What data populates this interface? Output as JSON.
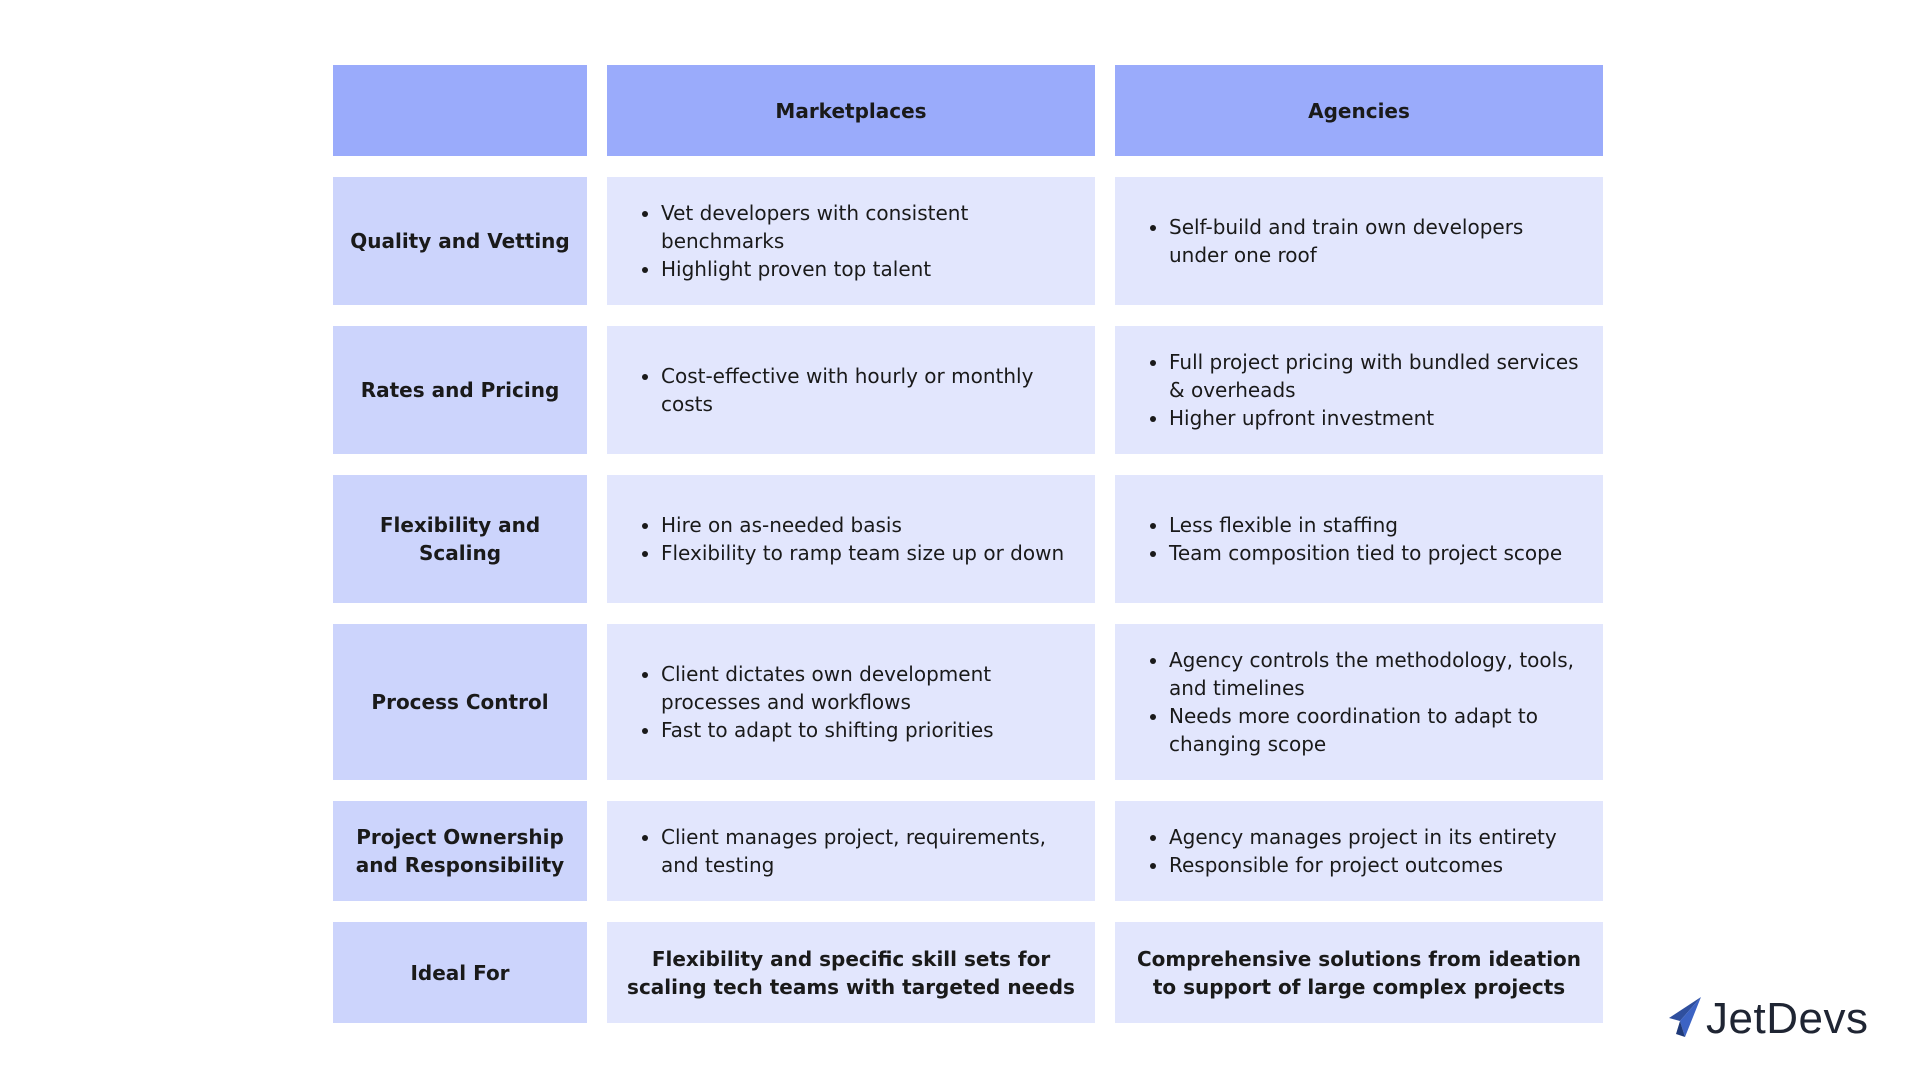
{
  "table": {
    "headers": [
      "",
      "Marketplaces",
      "Agencies"
    ],
    "rows": [
      {
        "label": "Quality and Vetting",
        "marketplaces": [
          "Vet developers with consistent benchmarks",
          "Highlight proven top talent"
        ],
        "agencies": [
          "Self-build and train own developers under one roof"
        ]
      },
      {
        "label": "Rates and Pricing",
        "marketplaces": [
          "Cost-effective with hourly or monthly costs"
        ],
        "agencies": [
          "Full project pricing with bundled services & overheads",
          "Higher upfront investment"
        ]
      },
      {
        "label": "Flexibility and Scaling",
        "marketplaces": [
          "Hire on as-needed basis",
          "Flexibility to ramp team size up or down"
        ],
        "agencies": [
          "Less flexible in staffing",
          "Team composition tied to project scope"
        ]
      },
      {
        "label": "Process Control",
        "marketplaces": [
          "Client dictates own development processes and workflows",
          "Fast to adapt to shifting priorities"
        ],
        "agencies": [
          "Agency controls the methodology, tools, and timelines",
          "Needs more coordination to adapt to changing scope"
        ]
      },
      {
        "label": "Project Ownership and Responsibility",
        "marketplaces": [
          "Client manages project, requirements, and testing"
        ],
        "agencies": [
          "Agency manages project in its entirety",
          "Responsible for project outcomes"
        ]
      }
    ],
    "ideal_for": {
      "label": "Ideal For",
      "marketplaces": "Flexibility and specific skill sets for scaling tech teams with targeted needs",
      "agencies": "Comprehensive solutions from ideation to support of large complex projects"
    }
  },
  "brand": {
    "name": "JetDevs",
    "logo_icon": "paper-plane-icon",
    "logo_color": "#2f4f9e"
  },
  "colors": {
    "header_bg": "#9aabfb",
    "label_bg": "#ccd4fc",
    "body_bg": "#e2e6fd"
  }
}
